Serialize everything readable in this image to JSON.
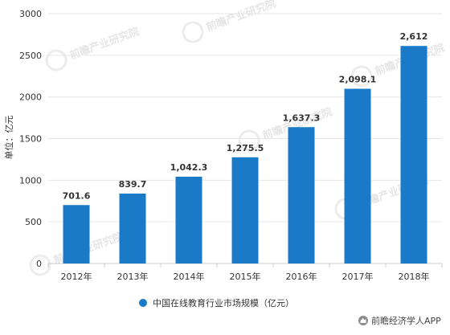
{
  "chart_data": {
    "type": "bar",
    "categories": [
      "2012年",
      "2013年",
      "2014年",
      "2015年",
      "2016年",
      "2017年",
      "2018年"
    ],
    "series": [
      {
        "name": "中国在线教育行业市场规模（亿元）",
        "values": [
          701.6,
          839.7,
          1042.3,
          1275.5,
          1637.3,
          2098.1,
          2612
        ]
      }
    ],
    "value_labels": [
      "701.6",
      "839.7",
      "1,042.3",
      "1,275.5",
      "1,637.3",
      "2,098.1",
      "2,612"
    ],
    "ylabel": "单位：亿元",
    "ylim": [
      0,
      3000
    ],
    "yticks": [
      0,
      500,
      1000,
      1500,
      2000,
      2500,
      3000
    ],
    "grid": true,
    "legend_position": "bottom",
    "bar_color": "#1a7ac8"
  },
  "watermark": "前瞻产业研究院",
  "source": "前瞻经济学人APP"
}
